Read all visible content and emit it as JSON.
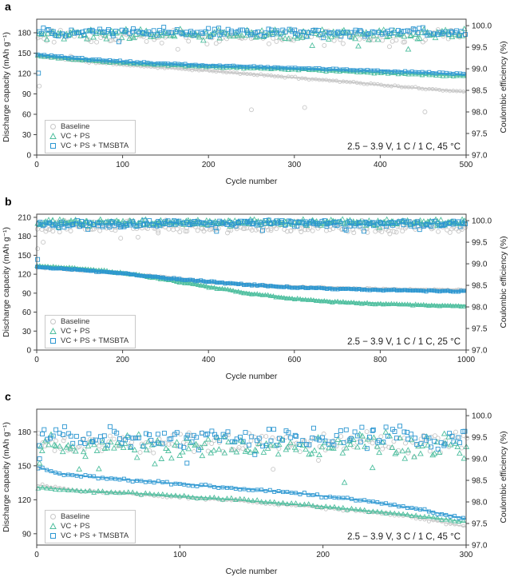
{
  "chart_data": [
    {
      "type": "scatter",
      "label": "a",
      "xlabel": "Cycle number",
      "ylabel_left": "Discharge capacity (mAh g⁻¹)",
      "ylabel_right": "Coulombic efficiency (%)",
      "annotation": "2.5 − 3.9 V, 1 C / 1 C, 45 °C",
      "xlim": [
        0,
        500
      ],
      "xticks": [
        0,
        100,
        200,
        300,
        400,
        500
      ],
      "ylim_left": [
        0,
        200
      ],
      "yticks_left": [
        0,
        30,
        60,
        90,
        120,
        150,
        180
      ],
      "ylim_right": [
        97.0,
        100.15
      ],
      "yticks_right": [
        "97.0",
        "97.5",
        "98.0",
        "98.5",
        "99.0",
        "99.5",
        "100.0"
      ],
      "legend_position": "bottom-left",
      "grid": false,
      "series": [
        {
          "name": "Baseline",
          "marker": "circle",
          "color": "#c6c6c6",
          "capacity_mAh_g": [
            [
              1,
              146
            ],
            [
              60,
              137
            ],
            [
              120,
              131
            ],
            [
              180,
              126
            ],
            [
              240,
              120
            ],
            [
              300,
              114
            ],
            [
              360,
              108
            ],
            [
              420,
              101
            ],
            [
              500,
              93
            ]
          ],
          "efficiency_pct_mean": 99.76,
          "efficiency_pct_spread": 0.09,
          "efficiency_outliers": [
            [
              3,
              98.6
            ],
            [
              250,
              98.05
            ],
            [
              312,
              98.1
            ],
            [
              452,
              98.0
            ]
          ]
        },
        {
          "name": "VC + PS",
          "marker": "triangle",
          "color": "#4fbf9f",
          "capacity_mAh_g": [
            [
              1,
              146
            ],
            [
              60,
              139
            ],
            [
              120,
              134
            ],
            [
              200,
              130
            ],
            [
              300,
              126
            ],
            [
              400,
              121
            ],
            [
              500,
              116
            ]
          ],
          "efficiency_pct_mean": 99.8,
          "efficiency_pct_spread": 0.07,
          "efficiency_outliers": []
        },
        {
          "name": "VC + PS + TMSBTA",
          "marker": "square",
          "color": "#2b96d1",
          "capacity_mAh_g": [
            [
              1,
              148
            ],
            [
              60,
              141
            ],
            [
              120,
              136
            ],
            [
              200,
              132
            ],
            [
              300,
              128
            ],
            [
              400,
              124
            ],
            [
              500,
              119
            ]
          ],
          "efficiency_pct_mean": 99.85,
          "efficiency_pct_spread": 0.06,
          "efficiency_outliers": [
            [
              2,
              98.9
            ]
          ]
        }
      ]
    },
    {
      "type": "scatter",
      "label": "b",
      "xlabel": "Cycle number",
      "ylabel_left": "Discharge capacity (mAh g⁻¹)",
      "ylabel_right": "Coulombic efficiency (%)",
      "annotation": "2.5 − 3.9 V, 1 C / 1 C, 25 °C",
      "xlim": [
        0,
        1000
      ],
      "xticks": [
        0,
        200,
        400,
        600,
        800,
        1000
      ],
      "ylim_left": [
        0,
        215
      ],
      "yticks_left": [
        0,
        30,
        60,
        90,
        120,
        150,
        180,
        210
      ],
      "ylim_right": [
        97.0,
        100.15
      ],
      "yticks_right": [
        "97.0",
        "97.5",
        "98.0",
        "98.5",
        "99.0",
        "99.5",
        "100.0"
      ],
      "legend_position": "bottom-left",
      "grid": false,
      "series": [
        {
          "name": "Baseline",
          "marker": "circle",
          "color": "#c6c6c6",
          "capacity_mAh_g": [
            [
              1,
              131
            ],
            [
              50,
              129
            ],
            [
              150,
              124
            ],
            [
              250,
              118
            ],
            [
              350,
              111
            ],
            [
              450,
              105
            ],
            [
              550,
              101
            ],
            [
              650,
              99
            ],
            [
              750,
              97
            ],
            [
              850,
              96
            ],
            [
              1000,
              95
            ]
          ],
          "efficiency_pct_mean": 99.86,
          "efficiency_pct_spread": 0.08,
          "efficiency_outliers": [
            [
              2,
              99.35
            ],
            [
              15,
              99.5
            ]
          ]
        },
        {
          "name": "VC + PS",
          "marker": "triangle",
          "color": "#4fbf9f",
          "capacity_mAh_g": [
            [
              1,
              133
            ],
            [
              100,
              129
            ],
            [
              200,
              122
            ],
            [
              300,
              112
            ],
            [
              400,
              100
            ],
            [
              500,
              89
            ],
            [
              600,
              81
            ],
            [
              700,
              76
            ],
            [
              800,
              73
            ],
            [
              900,
              71
            ],
            [
              1000,
              70
            ]
          ],
          "efficiency_pct_mean": 99.96,
          "efficiency_pct_spread": 0.04,
          "efficiency_outliers": []
        },
        {
          "name": "VC + PS + TMSBTA",
          "marker": "square",
          "color": "#2b96d1",
          "capacity_mAh_g": [
            [
              1,
              131
            ],
            [
              100,
              127
            ],
            [
              200,
              121
            ],
            [
              300,
              114
            ],
            [
              400,
              108
            ],
            [
              500,
              103
            ],
            [
              600,
              99
            ],
            [
              700,
              97
            ],
            [
              800,
              95
            ],
            [
              900,
              94
            ],
            [
              1000,
              93
            ]
          ],
          "efficiency_pct_mean": 99.93,
          "efficiency_pct_spread": 0.05,
          "efficiency_outliers": [
            [
              2,
              99.1
            ]
          ]
        }
      ]
    },
    {
      "type": "scatter",
      "label": "c",
      "xlabel": "Cycle number",
      "ylabel_left": "Discharge capacity (mAh g⁻¹)",
      "ylabel_right": "Coulombic efficiency (%)",
      "annotation": "2.5 − 3.9 V, 3 C / 1 C, 45 °C",
      "xlim": [
        0,
        300
      ],
      "xticks": [
        0,
        100,
        200,
        300
      ],
      "ylim_left": [
        80,
        200
      ],
      "yticks_left": [
        90,
        120,
        150,
        180
      ],
      "ylim_right": [
        97.0,
        100.15
      ],
      "yticks_right": [
        "97.0",
        "97.5",
        "98.0",
        "98.5",
        "99.0",
        "99.5",
        "100.0"
      ],
      "legend_position": "bottom-left",
      "grid": false,
      "series": [
        {
          "name": "Baseline",
          "marker": "circle",
          "color": "#c6c6c6",
          "capacity_mAh_g": [
            [
              1,
              133
            ],
            [
              30,
              128
            ],
            [
              80,
              124
            ],
            [
              140,
              119
            ],
            [
              200,
              113
            ],
            [
              250,
              107
            ],
            [
              280,
              101
            ],
            [
              300,
              96
            ]
          ],
          "efficiency_pct_mean": 99.38,
          "efficiency_pct_spread": 0.14,
          "efficiency_outliers": [
            [
              2,
              98.8
            ]
          ]
        },
        {
          "name": "VC + PS",
          "marker": "triangle",
          "color": "#4fbf9f",
          "capacity_mAh_g": [
            [
              1,
              131
            ],
            [
              30,
              128
            ],
            [
              80,
              125
            ],
            [
              140,
              120
            ],
            [
              200,
              114
            ],
            [
              250,
              108
            ],
            [
              290,
              102
            ],
            [
              300,
              100
            ]
          ],
          "efficiency_pct_mean": 99.3,
          "efficiency_pct_spread": 0.16,
          "efficiency_outliers": [
            [
              2,
              98.9
            ],
            [
              215,
              98.45
            ]
          ]
        },
        {
          "name": "VC + PS + TMSBTA",
          "marker": "square",
          "color": "#2b96d1",
          "capacity_mAh_g": [
            [
              1,
              149
            ],
            [
              15,
              143
            ],
            [
              60,
              138
            ],
            [
              120,
              132
            ],
            [
              180,
              126
            ],
            [
              230,
              119
            ],
            [
              270,
              111
            ],
            [
              300,
              103
            ]
          ],
          "efficiency_pct_mean": 99.5,
          "efficiency_pct_spread": 0.15,
          "efficiency_outliers": [
            [
              2,
              99.0
            ],
            [
              105,
              98.9
            ]
          ]
        }
      ]
    }
  ]
}
